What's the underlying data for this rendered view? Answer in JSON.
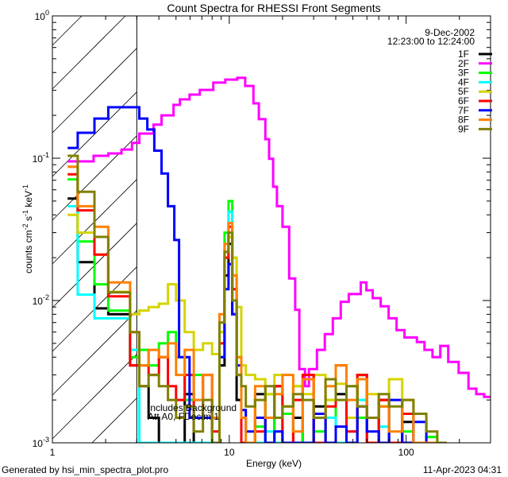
{
  "chart_data": {
    "type": "line",
    "title": "Count Spectra for RHESSI Front Segments",
    "xlabel": "Energy (keV)",
    "ylabel": {
      "base": "counts cm",
      "e1": "-2",
      "mid": " s",
      "e2": "-1",
      "end": " keV",
      "e3": "-1"
    },
    "xscale": "log",
    "yscale": "log",
    "xlim": [
      1,
      300
    ],
    "ylim": [
      0.001,
      1
    ],
    "x_ticks": [
      {
        "value": 1,
        "label": "1"
      },
      {
        "value": 10,
        "label": "10"
      },
      {
        "value": 100,
        "label": "100"
      }
    ],
    "y_ticks": [
      {
        "value": 1,
        "base": "10",
        "exp": "0"
      },
      {
        "value": 0.1,
        "base": "10",
        "exp": "-1"
      },
      {
        "value": 0.01,
        "base": "10",
        "exp": "-2"
      },
      {
        "value": 0.001,
        "base": "10",
        "exp": "-3"
      }
    ],
    "hatched_region_keV": [
      1,
      3
    ],
    "date": "9-Dec-2002",
    "time_range": "12:23:00 to 12:24:00",
    "annotations": [
      "Includes Background",
      "Att A0, FDecim 1"
    ],
    "legend_position": "top-right",
    "step_end_keV": 170,
    "common_energy": [
      1.22,
      1.39,
      1.73,
      2.07,
      2.75,
      3.1,
      3.5,
      4.0,
      4.5,
      5.0,
      5.6,
      6.3,
      7.1,
      8.0,
      8.8,
      9.4,
      9.9,
      10.4,
      11.0,
      11.7,
      12.4,
      14,
      16,
      18,
      20,
      23,
      26,
      30,
      35,
      40,
      46,
      53,
      60,
      70,
      80,
      95,
      110,
      130,
      150
    ],
    "series": [
      {
        "name": "1F",
        "color": "#000000",
        "counts": [
          0.052,
          0.0186,
          0.0088,
          0.008,
          0.0035,
          0.0025,
          0.0015,
          0.0008,
          0.0008,
          0.0008,
          0.0022,
          0.0008,
          0.0008,
          0.0008,
          0.0035,
          0.015,
          0.025,
          0.008,
          0.002,
          0.0008,
          0.0008,
          0.0022,
          0.0008,
          0.0025,
          0.0008,
          0.0015,
          0.0008,
          0.0018,
          0.0008,
          0.0022,
          0.0008,
          0.003,
          0.0008,
          0.002,
          0.0008,
          0.0014,
          0.0008,
          0.0008,
          0.0008
        ]
      },
      {
        "name": "2F",
        "color": "#ff00ff",
        "end_keV": 300,
        "energy": [
          1.22,
          1.71,
          2.07,
          2.46,
          2.82,
          3.1,
          3.73,
          4.14,
          4.84,
          5.26,
          5.96,
          6.81,
          8.12,
          9.49,
          11.1,
          12.3,
          13.7,
          14.7,
          16.0,
          16.8,
          17.7,
          18.6,
          20.0,
          21.8,
          23.6,
          24.9,
          26.8,
          28.2,
          31.3,
          34.7,
          38.5,
          42.7,
          47.4,
          55.4,
          59.6,
          64.7,
          71.8,
          79.6,
          88.3,
          97.9,
          115,
          127,
          141,
          156,
          173,
          198,
          225,
          249,
          276
        ],
        "counts": [
          0.095,
          0.104,
          0.108,
          0.115,
          0.128,
          0.149,
          0.172,
          0.2,
          0.237,
          0.259,
          0.28,
          0.302,
          0.34,
          0.357,
          0.367,
          0.322,
          0.243,
          0.188,
          0.136,
          0.099,
          0.063,
          0.046,
          0.033,
          0.0143,
          0.0086,
          0.0033,
          0.0025,
          0.0033,
          0.0045,
          0.0058,
          0.0075,
          0.0098,
          0.0111,
          0.0134,
          0.0118,
          0.0104,
          0.0091,
          0.0075,
          0.0062,
          0.0055,
          0.0051,
          0.0045,
          0.004,
          0.0048,
          0.0037,
          0.0031,
          0.0024,
          0.0022,
          0.0021
        ]
      },
      {
        "name": "3F",
        "color": "#00ff00",
        "counts": [
          0.071,
          0.026,
          0.013,
          0.0085,
          0.004,
          0.0045,
          0.0035,
          0.005,
          0.006,
          0.004,
          0.002,
          0.003,
          0.0015,
          0.0008,
          0.006,
          0.03,
          0.05,
          0.02,
          0.004,
          0.0008,
          0.0008,
          0.0013,
          0.0022,
          0.0008,
          0.0016,
          0.0025,
          0.0008,
          0.0012,
          0.002,
          0.0008,
          0.0025,
          0.0015,
          0.0008,
          0.0018,
          0.0008,
          0.0012,
          0.0008,
          0.0011,
          0.0008
        ]
      },
      {
        "name": "4F",
        "color": "#00ffff",
        "counts": [
          0.046,
          0.011,
          0.0075,
          0.0075,
          0.0045,
          0.0008,
          0.0008,
          0.0008,
          0.0008,
          0.0008,
          0.0008,
          0.0008,
          0.0008,
          0.0008,
          0.004,
          0.02,
          0.042,
          0.012,
          0.003,
          0.0008,
          0.0008,
          0.0008,
          0.0012,
          0.0008,
          0.0008,
          0.001,
          0.0008,
          0.0008,
          0.0015,
          0.0008,
          0.0012,
          0.002,
          0.0008,
          0.0013,
          0.0008,
          0.0016,
          0.0008,
          0.0008,
          0.0008
        ]
      },
      {
        "name": "5F",
        "color": "#d4d400",
        "counts": [
          0.04,
          0.03,
          0.021,
          0.0115,
          0.008,
          0.0085,
          0.009,
          0.0095,
          0.013,
          0.01,
          0.006,
          0.0045,
          0.005,
          0.0042,
          0.006,
          0.02,
          0.028,
          0.02,
          0.009,
          0.0035,
          0.003,
          0.0028,
          0.0022,
          0.003,
          0.0018,
          0.0025,
          0.0022,
          0.003,
          0.002,
          0.0026,
          0.0015,
          0.003,
          0.0022,
          0.0018,
          0.0028,
          0.0016,
          0.001,
          0.0008,
          0.0008
        ]
      },
      {
        "name": "6F",
        "color": "#ff0000",
        "counts": [
          0.077,
          0.043,
          0.021,
          0.0107,
          0.0035,
          0.0035,
          0.003,
          0.004,
          0.0025,
          0.002,
          0.003,
          0.0015,
          0.003,
          0.0012,
          0.005,
          0.02,
          0.033,
          0.012,
          0.003,
          0.0008,
          0.0008,
          0.0012,
          0.0015,
          0.0025,
          0.0008,
          0.002,
          0.003,
          0.0008,
          0.0018,
          0.0035,
          0.0012,
          0.003,
          0.0008,
          0.002,
          0.0008,
          0.0016,
          0.001,
          0.0008,
          0.0008
        ]
      },
      {
        "name": "7F",
        "color": "#0000ff",
        "energy": [
          1.22,
          1.39,
          1.73,
          2.07,
          3.1,
          3.44,
          3.77,
          4.14,
          4.5,
          4.89,
          5.2,
          5.96,
          8.8,
          9.4,
          9.9,
          10.4,
          11.0,
          11.7,
          12.4,
          14,
          16,
          18,
          20,
          23,
          26,
          30,
          35,
          40,
          46,
          53,
          60,
          70,
          80,
          95,
          110,
          130,
          150
        ],
        "counts": [
          0.118,
          0.151,
          0.19,
          0.228,
          0.19,
          0.159,
          0.113,
          0.078,
          0.046,
          0.0266,
          0.004,
          0.0015,
          0.004,
          0.012,
          0.018,
          0.008,
          0.0035,
          0.0017,
          0.0012,
          0.0015,
          0.0008,
          0.0012,
          0.0008,
          0.001,
          0.0008,
          0.0016,
          0.0008,
          0.0013,
          0.0008,
          0.0018,
          0.0012,
          0.0008,
          0.002,
          0.0008,
          0.0014,
          0.0008,
          0.0008
        ]
      },
      {
        "name": "8F",
        "color": "#ff8000",
        "counts": [
          0.087,
          0.046,
          0.033,
          0.0134,
          0.006,
          0.0035,
          0.0045,
          0.004,
          0.005,
          0.003,
          0.0045,
          0.002,
          0.003,
          0.0015,
          0.008,
          0.025,
          0.035,
          0.015,
          0.004,
          0.0015,
          0.001,
          0.0025,
          0.0015,
          0.0022,
          0.003,
          0.0012,
          0.0028,
          0.0015,
          0.0025,
          0.0035,
          0.002,
          0.0028,
          0.0015,
          0.0018,
          0.0012,
          0.002,
          0.0008,
          0.0008,
          0.0008
        ]
      },
      {
        "name": "9F",
        "color": "#808000",
        "counts": [
          0.104,
          0.058,
          0.028,
          0.0114,
          0.006,
          0.0025,
          0.003,
          0.0025,
          0.002,
          0.0015,
          0.0018,
          0.0012,
          0.002,
          0.001,
          0.007,
          0.022,
          0.03,
          0.01,
          0.003,
          0.0025,
          0.0018,
          0.002,
          0.0025,
          0.0015,
          0.0018,
          0.0022,
          0.002,
          0.0015,
          0.0028,
          0.002,
          0.0025,
          0.0018,
          0.0015,
          0.0022,
          0.0018,
          0.002,
          0.0016,
          0.0012,
          0.0008
        ]
      }
    ]
  },
  "footer": {
    "generated_by": "Generated by hsi_min_spectra_plot.pro",
    "timestamp": "11-Apr-2023 04:31"
  }
}
